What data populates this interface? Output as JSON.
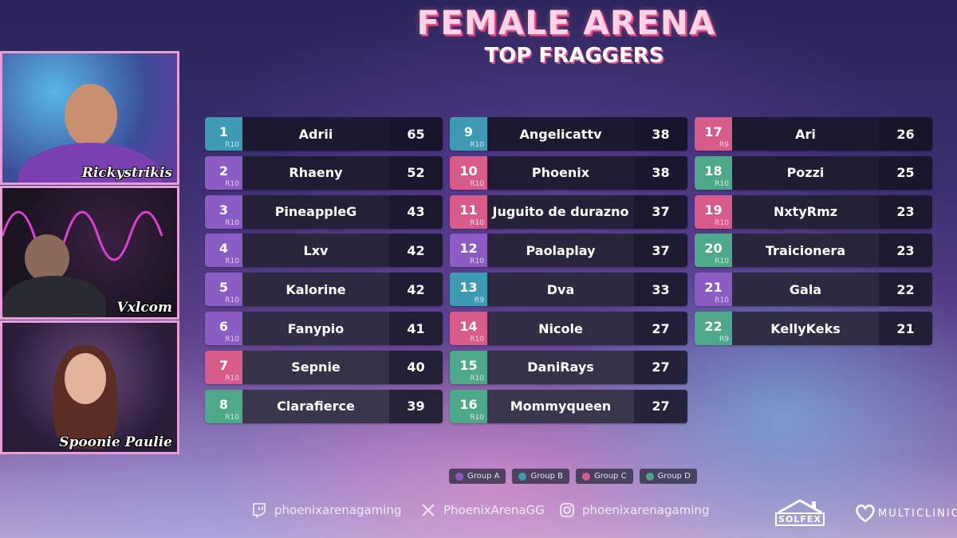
{
  "header": {
    "title": "FEMALE ARENA",
    "subtitle": "TOP FRAGGERS"
  },
  "cams": [
    {
      "name": "Rickystrikis"
    },
    {
      "name": "Vxlcom"
    },
    {
      "name": "Spoonie Paulie"
    }
  ],
  "colors": {
    "group_a": "#8a5cc4",
    "group_b": "#3e9bb3",
    "group_c": "#d85c8b",
    "group_d": "#4ea88a"
  },
  "leaderboard": [
    {
      "rank": "1",
      "round": "R10",
      "name": "Adrii",
      "score": "65",
      "group": "b"
    },
    {
      "rank": "2",
      "round": "R10",
      "name": "Rhaeny",
      "score": "52",
      "group": "a"
    },
    {
      "rank": "3",
      "round": "R10",
      "name": "PineappleG",
      "score": "43",
      "group": "a"
    },
    {
      "rank": "4",
      "round": "R10",
      "name": "Lxv",
      "score": "42",
      "group": "a"
    },
    {
      "rank": "5",
      "round": "R10",
      "name": "Kalorine",
      "score": "42",
      "group": "a"
    },
    {
      "rank": "6",
      "round": "R10",
      "name": "Fanypio",
      "score": "41",
      "group": "a"
    },
    {
      "rank": "7",
      "round": "R10",
      "name": "Sepnie",
      "score": "40",
      "group": "c"
    },
    {
      "rank": "8",
      "round": "R10",
      "name": "Clarafierce",
      "score": "39",
      "group": "d"
    },
    {
      "rank": "9",
      "round": "R10",
      "name": "Angelicattv",
      "score": "38",
      "group": "b"
    },
    {
      "rank": "10",
      "round": "R10",
      "name": "Phoenix",
      "score": "38",
      "group": "c"
    },
    {
      "rank": "11",
      "round": "R10",
      "name": "Juguito de durazno",
      "score": "37",
      "group": "c"
    },
    {
      "rank": "12",
      "round": "R10",
      "name": "Paolaplay",
      "score": "37",
      "group": "a"
    },
    {
      "rank": "13",
      "round": "R9",
      "name": "Dva",
      "score": "33",
      "group": "b"
    },
    {
      "rank": "14",
      "round": "R10",
      "name": "Nicole",
      "score": "27",
      "group": "c"
    },
    {
      "rank": "15",
      "round": "R10",
      "name": "DaniRays",
      "score": "27",
      "group": "d"
    },
    {
      "rank": "16",
      "round": "R10",
      "name": "Mommyqueen",
      "score": "27",
      "group": "d"
    },
    {
      "rank": "17",
      "round": "R9",
      "name": "Ari",
      "score": "26",
      "group": "c"
    },
    {
      "rank": "18",
      "round": "R10",
      "name": "Pozzi",
      "score": "25",
      "group": "d"
    },
    {
      "rank": "19",
      "round": "R10",
      "name": "NxtyRmz",
      "score": "23",
      "group": "c"
    },
    {
      "rank": "20",
      "round": "R10",
      "name": "Traicionera",
      "score": "23",
      "group": "d"
    },
    {
      "rank": "21",
      "round": "R10",
      "name": "Gala",
      "score": "22",
      "group": "a"
    },
    {
      "rank": "22",
      "round": "R9",
      "name": "KellyKeks",
      "score": "21",
      "group": "d"
    }
  ],
  "legend": [
    {
      "label": "Group A",
      "group": "a"
    },
    {
      "label": "Group B",
      "group": "b"
    },
    {
      "label": "Group C",
      "group": "c"
    },
    {
      "label": "Group D",
      "group": "d"
    }
  ],
  "socials": {
    "twitch": {
      "icon": "twitch-icon",
      "handle": "phoenixarenagaming"
    },
    "x": {
      "icon": "x-icon",
      "handle": "PhoenixArenaGG"
    },
    "instagram": {
      "icon": "instagram-icon",
      "handle": "phoenixarenagaming"
    }
  },
  "sponsors": {
    "solfex": "SOLFEX",
    "multiclinic": "MULTICLINIC"
  }
}
